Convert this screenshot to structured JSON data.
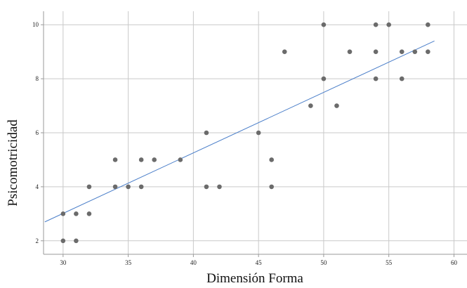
{
  "chart_data": {
    "type": "scatter",
    "title": "",
    "xlabel": "Dimensión Forma",
    "ylabel": "Psicomotricidad",
    "xlim": [
      28.5,
      61
    ],
    "ylim": [
      1.5,
      10.5
    ],
    "xticks": [
      30,
      35,
      40,
      45,
      50,
      55,
      60
    ],
    "yticks": [
      2,
      4,
      6,
      8,
      10
    ],
    "grid": true,
    "colors": {
      "points": "#6b6b6b",
      "fit_line": "#4a7ec9",
      "grid": "#c9c9c9",
      "frame": "#9a9a9a"
    },
    "points": [
      {
        "x": 30,
        "y": 2
      },
      {
        "x": 30,
        "y": 3
      },
      {
        "x": 31,
        "y": 2
      },
      {
        "x": 31,
        "y": 3
      },
      {
        "x": 32,
        "y": 3
      },
      {
        "x": 32,
        "y": 4
      },
      {
        "x": 34,
        "y": 4
      },
      {
        "x": 34,
        "y": 5
      },
      {
        "x": 35,
        "y": 4
      },
      {
        "x": 36,
        "y": 4
      },
      {
        "x": 36,
        "y": 5
      },
      {
        "x": 37,
        "y": 5
      },
      {
        "x": 39,
        "y": 5
      },
      {
        "x": 41,
        "y": 4
      },
      {
        "x": 41,
        "y": 6
      },
      {
        "x": 42,
        "y": 4
      },
      {
        "x": 45,
        "y": 6
      },
      {
        "x": 46,
        "y": 4
      },
      {
        "x": 46,
        "y": 5
      },
      {
        "x": 47,
        "y": 9
      },
      {
        "x": 49,
        "y": 7
      },
      {
        "x": 50,
        "y": 8
      },
      {
        "x": 50,
        "y": 10
      },
      {
        "x": 51,
        "y": 7
      },
      {
        "x": 52,
        "y": 9
      },
      {
        "x": 54,
        "y": 8
      },
      {
        "x": 54,
        "y": 9
      },
      {
        "x": 54,
        "y": 10
      },
      {
        "x": 55,
        "y": 10
      },
      {
        "x": 56,
        "y": 8
      },
      {
        "x": 56,
        "y": 9
      },
      {
        "x": 57,
        "y": 9
      },
      {
        "x": 58,
        "y": 9
      },
      {
        "x": 58,
        "y": 10
      }
    ],
    "fit_line": {
      "x_start": 28.6,
      "y_start": 2.7,
      "x_end": 58.5,
      "y_end": 9.4
    }
  }
}
